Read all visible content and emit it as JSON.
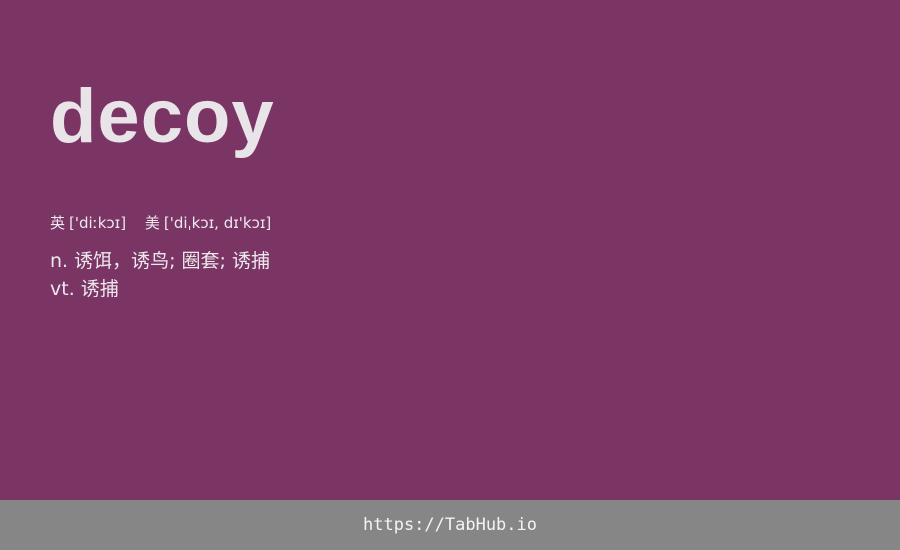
{
  "card": {
    "word": "decoy",
    "phonetics": {
      "uk_label": "英",
      "uk": "['diːkɔɪ]",
      "us_label": "美",
      "us": "['diˌkɔɪ, dɪ'kɔɪ]"
    },
    "definitions": [
      {
        "pos": "n.",
        "meaning": "诱饵，诱鸟; 圈套; 诱捕"
      },
      {
        "pos": "vt.",
        "meaning": "诱捕"
      }
    ]
  },
  "footer": {
    "link_text": "https://TabHub.io"
  },
  "colors": {
    "background": "#7b3565",
    "footer": "#868686",
    "text": "#e8e4e8"
  }
}
